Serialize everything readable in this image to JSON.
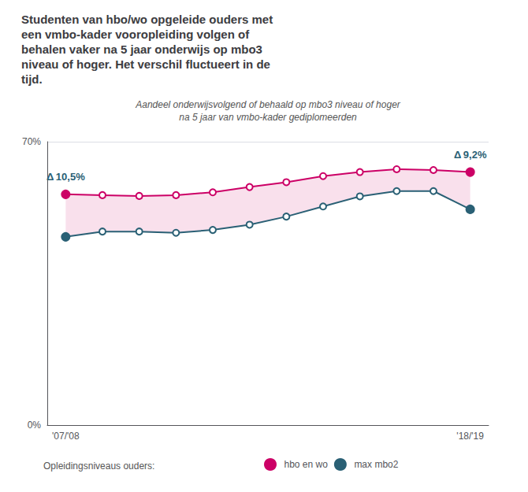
{
  "chart_data": {
    "type": "line",
    "title": "Studenten van hbo/wo opgeleide ouders met\neen vmbo-kader vooropleiding volgen of\nbehalen vaker na 5 jaar onderwijs op mbo3\nniveau of hoger. Het verschil fluctueert in de\ntijd.",
    "subtitle": "Aandeel onderwijsvolgend of behaald op mbo3 niveau of hoger\nna 5 jaar van vmbo-kader gediplomeerden",
    "legend_title": "Opleidingsniveaus ouders:",
    "categories": [
      "'07/'08",
      null,
      null,
      null,
      null,
      null,
      null,
      null,
      null,
      null,
      null,
      "'18/'19"
    ],
    "series": [
      {
        "name": "hbo en wo",
        "color": "#cc0066",
        "values": [
          57.0,
          56.8,
          56.6,
          56.8,
          57.5,
          58.8,
          60.0,
          61.5,
          62.5,
          63.2,
          63.0,
          62.5
        ]
      },
      {
        "name": "max mbo2",
        "color": "#2a6075",
        "values": [
          46.5,
          47.8,
          47.8,
          47.5,
          48.2,
          49.5,
          51.5,
          54.0,
          56.5,
          57.8,
          57.8,
          53.3
        ]
      }
    ],
    "annotations": [
      {
        "text": "Δ 10,5%"
      },
      {
        "text": "Δ 9,2%"
      }
    ],
    "ylim": [
      0,
      70
    ],
    "yticks": [
      {
        "value": 0,
        "label": "0%"
      },
      {
        "value": 70,
        "label": "70%"
      }
    ],
    "grid": true,
    "marker": "circle"
  }
}
